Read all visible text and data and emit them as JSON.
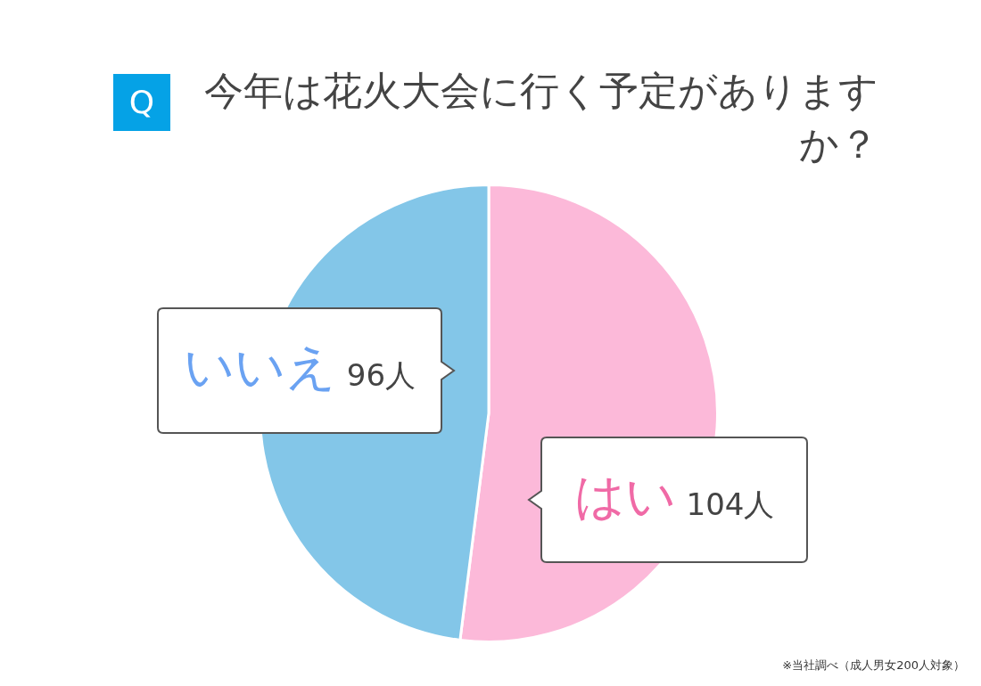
{
  "chart_data": {
    "type": "pie",
    "title": "今年は花火大会に行く予定がありますか？",
    "categories": [
      "はい",
      "いいえ"
    ],
    "values": [
      104,
      96
    ],
    "value_labels": [
      "104人",
      "96人"
    ],
    "colors": [
      "#fcb9d9",
      "#83c6e8"
    ],
    "legend": false,
    "annotations": [
      "Q",
      "※当社調べ（成人男女200人対象）"
    ]
  }
}
